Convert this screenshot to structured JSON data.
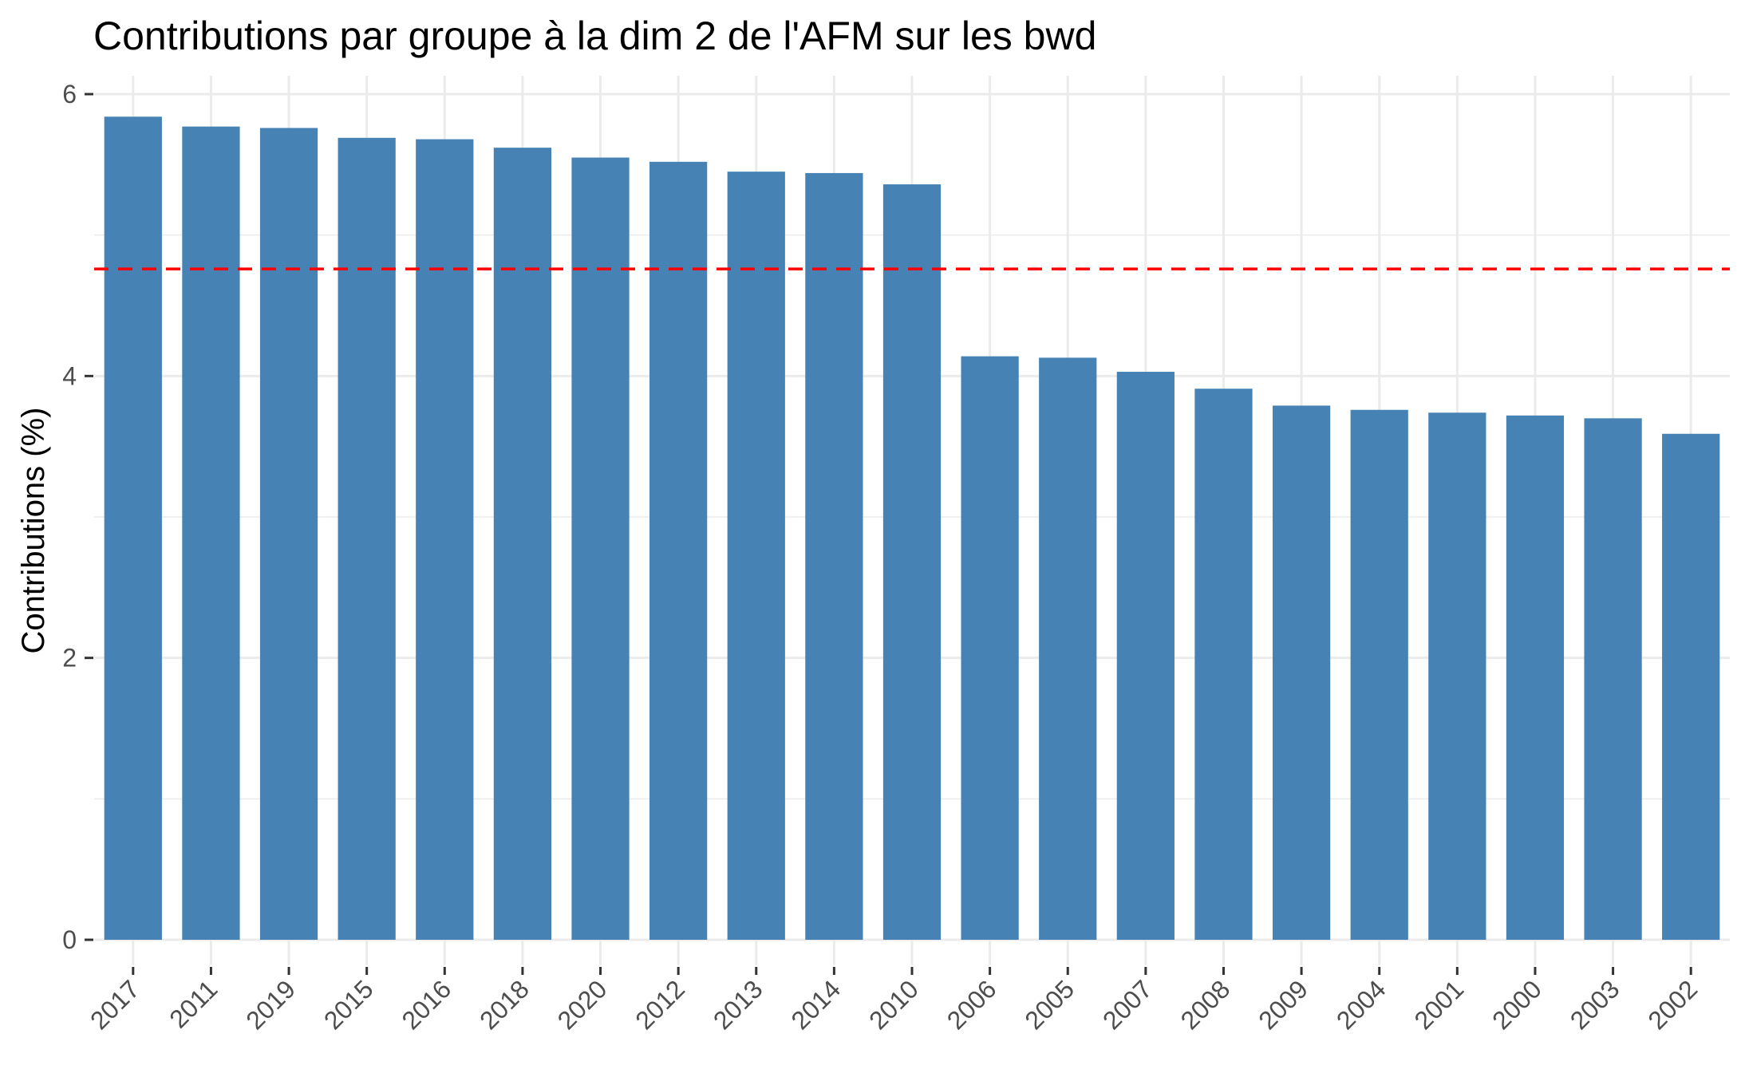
{
  "chart_data": {
    "type": "bar",
    "title": "Contributions par groupe à la dim 2 de l'AFM sur les bwd",
    "xlabel": "",
    "ylabel": "Contributions (%)",
    "categories": [
      "2017",
      "2011",
      "2019",
      "2015",
      "2016",
      "2018",
      "2020",
      "2012",
      "2013",
      "2014",
      "2010",
      "2006",
      "2005",
      "2007",
      "2008",
      "2009",
      "2004",
      "2001",
      "2000",
      "2003",
      "2002"
    ],
    "values": [
      5.84,
      5.77,
      5.76,
      5.69,
      5.68,
      5.62,
      5.55,
      5.52,
      5.45,
      5.44,
      5.36,
      4.14,
      4.13,
      4.03,
      3.91,
      3.79,
      3.76,
      3.74,
      3.72,
      3.7,
      3.59
    ],
    "reference_line": 4.76,
    "ylim": [
      -0.23,
      6.12
    ],
    "yticks": [
      0,
      2,
      4,
      6
    ],
    "ytick_labels": [
      "0",
      "2",
      "4",
      "6"
    ],
    "grid": true,
    "bar_color": "#4682B4",
    "reference_line_color": "#FF0000",
    "gridline_color": "#EBEBEB"
  }
}
